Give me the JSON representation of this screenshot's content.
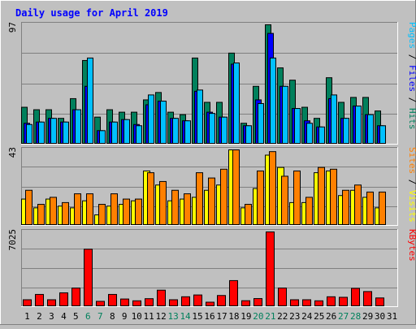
{
  "title": "Daily usage for April 2019",
  "colors": {
    "background": "#c0c0c0",
    "panel": "#c0c0c0",
    "title": "#0000ff",
    "hits": "#00805c",
    "files": "#0000ff",
    "pages": "#00c0ff",
    "visits": "#ffff00",
    "sites": "#ff8000",
    "kbytes": "#ff0000",
    "weekend_label": "#00805c",
    "day_label": "#000000"
  },
  "chart_data": [
    {
      "type": "bar",
      "name": "hits-files-pages",
      "title": "Daily usage for April 2019",
      "ylabel": "Pages / Files / Hits",
      "ymax_label": "97",
      "ylim": [
        0,
        97
      ],
      "grid": true,
      "categories": [
        "1",
        "2",
        "3",
        "4",
        "5",
        "6",
        "7",
        "8",
        "9",
        "10",
        "11",
        "12",
        "13",
        "14",
        "15",
        "16",
        "17",
        "18",
        "19",
        "20",
        "21",
        "22",
        "23",
        "24",
        "25",
        "26",
        "27",
        "28",
        "29",
        "30",
        "31"
      ],
      "series": [
        {
          "name": "Hits",
          "color": "#00805c",
          "values": [
            30,
            28,
            28,
            21,
            37,
            68,
            22,
            28,
            26,
            26,
            36,
            42,
            26,
            24,
            70,
            34,
            34,
            74,
            17,
            47,
            97,
            62,
            52,
            30,
            21,
            54,
            34,
            38,
            38,
            27,
            0
          ]
        },
        {
          "name": "Files",
          "color": "#0000ff",
          "values": [
            17,
            18,
            21,
            18,
            28,
            47,
            11,
            18,
            20,
            16,
            32,
            35,
            21,
            19,
            43,
            26,
            22,
            65,
            15,
            36,
            90,
            47,
            29,
            19,
            14,
            37,
            21,
            31,
            24,
            15,
            0
          ]
        },
        {
          "name": "Pages",
          "color": "#00c0ff",
          "values": [
            16,
            18,
            21,
            18,
            28,
            70,
            11,
            18,
            20,
            15,
            40,
            35,
            21,
            19,
            44,
            25,
            22,
            66,
            15,
            33,
            70,
            47,
            29,
            17,
            14,
            40,
            21,
            31,
            24,
            15,
            0
          ]
        }
      ]
    },
    {
      "type": "bar",
      "name": "visits-sites",
      "ylabel": "Sites / Visits",
      "ymax_label": "43",
      "ylim": [
        0,
        43
      ],
      "grid": true,
      "categories": [
        "1",
        "2",
        "3",
        "4",
        "5",
        "6",
        "7",
        "8",
        "9",
        "10",
        "11",
        "12",
        "13",
        "14",
        "15",
        "16",
        "17",
        "18",
        "19",
        "20",
        "21",
        "22",
        "23",
        "24",
        "25",
        "26",
        "27",
        "28",
        "29",
        "30",
        "31"
      ],
      "series": [
        {
          "name": "Visits",
          "color": "#ffff00",
          "values": [
            15,
            10,
            15,
            11,
            10,
            14,
            6,
            11,
            12,
            14,
            31,
            23,
            14,
            15,
            16,
            20,
            23,
            43,
            10,
            21,
            40,
            33,
            13,
            13,
            30,
            31,
            17,
            20,
            16,
            10,
            0
          ]
        },
        {
          "name": "Sites",
          "color": "#ff8000",
          "values": [
            20,
            12,
            16,
            13,
            18,
            18,
            12,
            18,
            15,
            15,
            30,
            25,
            20,
            18,
            30,
            27,
            32,
            43,
            12,
            31,
            42,
            28,
            31,
            16,
            33,
            32,
            20,
            23,
            19,
            19,
            0
          ]
        }
      ]
    },
    {
      "type": "bar",
      "name": "kbytes",
      "ylabel": "KBytes",
      "ymax_label": "7025",
      "ylim": [
        0,
        7025
      ],
      "grid": true,
      "categories": [
        "1",
        "2",
        "3",
        "4",
        "5",
        "6",
        "7",
        "8",
        "9",
        "10",
        "11",
        "12",
        "13",
        "14",
        "15",
        "16",
        "17",
        "18",
        "19",
        "20",
        "21",
        "22",
        "23",
        "24",
        "25",
        "26",
        "27",
        "28",
        "29",
        "30",
        "31"
      ],
      "series": [
        {
          "name": "KBytes",
          "color": "#ff0000",
          "values": [
            650,
            1150,
            650,
            1300,
            1750,
            5400,
            500,
            1150,
            720,
            550,
            750,
            1550,
            650,
            930,
            1100,
            420,
            1050,
            2450,
            560,
            760,
            7025,
            1750,
            650,
            650,
            550,
            930,
            880,
            1720,
            1420,
            820,
            0
          ]
        }
      ]
    }
  ],
  "x_labels": [
    {
      "text": "1",
      "weekend": false
    },
    {
      "text": "2",
      "weekend": false
    },
    {
      "text": "3",
      "weekend": false
    },
    {
      "text": "4",
      "weekend": false
    },
    {
      "text": "5",
      "weekend": false
    },
    {
      "text": "6",
      "weekend": true
    },
    {
      "text": "7",
      "weekend": true
    },
    {
      "text": "8",
      "weekend": false
    },
    {
      "text": "9",
      "weekend": false
    },
    {
      "text": "10",
      "weekend": false
    },
    {
      "text": "11",
      "weekend": false
    },
    {
      "text": "12",
      "weekend": false
    },
    {
      "text": "13",
      "weekend": true
    },
    {
      "text": "14",
      "weekend": true
    },
    {
      "text": "15",
      "weekend": false
    },
    {
      "text": "16",
      "weekend": false
    },
    {
      "text": "17",
      "weekend": false
    },
    {
      "text": "18",
      "weekend": false
    },
    {
      "text": "19",
      "weekend": false
    },
    {
      "text": "20",
      "weekend": true
    },
    {
      "text": "21",
      "weekend": true
    },
    {
      "text": "22",
      "weekend": false
    },
    {
      "text": "23",
      "weekend": false
    },
    {
      "text": "24",
      "weekend": false
    },
    {
      "text": "25",
      "weekend": false
    },
    {
      "text": "26",
      "weekend": false
    },
    {
      "text": "27",
      "weekend": true
    },
    {
      "text": "28",
      "weekend": true
    },
    {
      "text": "29",
      "weekend": false
    },
    {
      "text": "30",
      "weekend": false
    },
    {
      "text": "31",
      "weekend": false
    }
  ],
  "right_labels": {
    "panel1": [
      {
        "text": "Pages",
        "color": "#00c0ff"
      },
      {
        "text": " / ",
        "color": "#000000"
      },
      {
        "text": "Files",
        "color": "#0000ff"
      },
      {
        "text": " / ",
        "color": "#000000"
      },
      {
        "text": "Hits",
        "color": "#00805c"
      }
    ],
    "panel2": [
      {
        "text": "Sites",
        "color": "#ff8000"
      },
      {
        "text": " / ",
        "color": "#000000"
      },
      {
        "text": "Visits",
        "color": "#ffff00"
      }
    ],
    "panel3": [
      {
        "text": "KBytes",
        "color": "#ff0000"
      }
    ]
  }
}
